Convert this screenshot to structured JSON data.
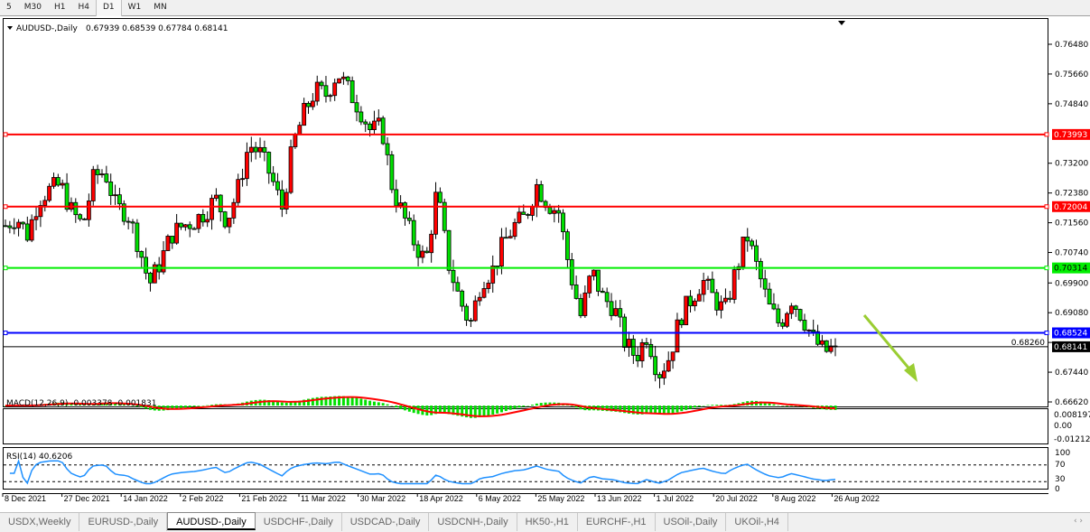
{
  "toolbar": {
    "timeframes": [
      "5",
      "M30",
      "H1",
      "H4",
      "D1",
      "W1",
      "MN"
    ],
    "active": "D1"
  },
  "chart_header": {
    "symbol": "AUDUSD-,Daily",
    "ohlc": "0.67939 0.68539 0.67784 0.68141"
  },
  "chart_data": {
    "type": "candlestick",
    "symbol": "AUDUSD-,Daily",
    "price_axis_ticks": [
      "0.76480",
      "0.75660",
      "0.74840",
      "0.73200",
      "0.72380",
      "0.71560",
      "0.70740",
      "0.69900",
      "0.69080",
      "0.68260",
      "0.67440",
      "0.66620"
    ],
    "ylim": [
      0.6652,
      0.7668
    ],
    "date_ticks": [
      "8 Dec 2021",
      "27 Dec 2021",
      "14 Jan 2022",
      "2 Feb 2022",
      "21 Feb 2022",
      "11 Mar 2022",
      "30 Mar 2022",
      "18 Apr 2022",
      "6 May 2022",
      "25 May 2022",
      "13 Jun 2022",
      "1 Jul 2022",
      "20 Jul 2022",
      "8 Aug 2022",
      "26 Aug 2022"
    ],
    "approx_closes": [
      0.7148,
      0.7172,
      0.7123,
      0.7222,
      0.7247,
      0.726,
      0.7185,
      0.7148,
      0.7284,
      0.7297,
      0.7197,
      0.7185,
      0.7098,
      0.6986,
      0.7048,
      0.7123,
      0.7148,
      0.716,
      0.7185,
      0.7222,
      0.716,
      0.7247,
      0.7372,
      0.7347,
      0.7284,
      0.7197,
      0.7372,
      0.7459,
      0.7521,
      0.7509,
      0.7571,
      0.7521,
      0.7471,
      0.7409,
      0.7421,
      0.7247,
      0.7172,
      0.7098,
      0.7048,
      0.7247,
      0.7048,
      0.6948,
      0.6874,
      0.6998,
      0.7023,
      0.7098,
      0.7148,
      0.7172,
      0.726,
      0.721,
      0.7185,
      0.7023,
      0.6898,
      0.7023,
      0.6948,
      0.6923,
      0.6824,
      0.6786,
      0.6849,
      0.6737,
      0.6786,
      0.6898,
      0.6948,
      0.6998,
      0.6948,
      0.6911,
      0.7023,
      0.7123,
      0.7023,
      0.6923,
      0.6874,
      0.6948,
      0.6898,
      0.6836,
      0.6799,
      0.6814
    ],
    "horizontal_lines": [
      {
        "price": "0.73993",
        "value": 0.73993,
        "color": "#ff0000"
      },
      {
        "price": "0.72004",
        "value": 0.72004,
        "color": "#ff0000"
      },
      {
        "price": "0.70314",
        "value": 0.70314,
        "color": "#00ee00"
      },
      {
        "price": "0.68524",
        "value": 0.68524,
        "color": "#0000ff"
      }
    ],
    "current_price": {
      "label": "0.68141",
      "value": 0.68141
    },
    "bull_color": "#ff0000",
    "bear_color": "#00e000",
    "arrow_color": "#9acd32",
    "macd": {
      "label": "MACD(12,26,9) -0.003378 -0.001831",
      "ticks": [
        "0.008197",
        "0.00",
        "-0.01212"
      ],
      "signal_color": "#ff0000",
      "hist_color": "#00e000"
    },
    "rsi": {
      "label": "RSI(14) 40.6206",
      "ticks": [
        "100",
        "70",
        "30",
        "0"
      ],
      "levels": [
        70,
        30
      ],
      "color": "#1e90ff"
    }
  },
  "tabs": [
    {
      "label": "USDX,Weekly"
    },
    {
      "label": "EURUSD-,Daily"
    },
    {
      "label": "AUDUSD-,Daily",
      "active": true
    },
    {
      "label": "USDCHF-,Daily"
    },
    {
      "label": "USDCAD-,Daily"
    },
    {
      "label": "USDCNH-,Daily"
    },
    {
      "label": "HK50-,H1"
    },
    {
      "label": "EURCHF-,H1"
    },
    {
      "label": "USOil-,Daily"
    },
    {
      "label": "UKOil-,H4"
    }
  ],
  "scroll_arrows": "‹ ›"
}
